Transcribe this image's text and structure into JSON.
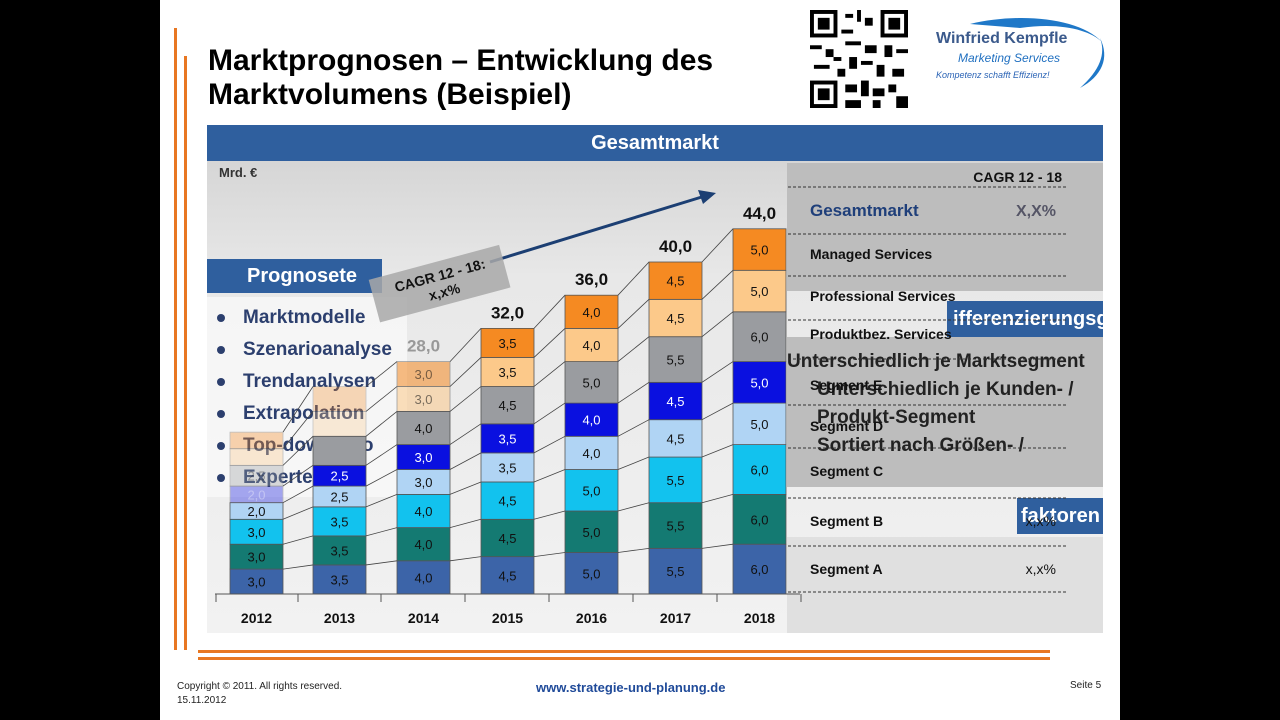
{
  "slide": {
    "title_line1": "Marktprognosen – Entwicklung des",
    "title_line2": "Marktvolumens (Beispiel)",
    "logo_name": "Winfried Kempfle",
    "logo_sub": "Marketing Services",
    "logo_tagline": "Kompetenz schafft Effizienz!",
    "gesamtmarkt_header": "Gesamtmarkt",
    "unit": "Mrd. €",
    "prognose_header": "Prognosete",
    "bullets": [
      "Marktmodelle",
      "Szenarioanalyse",
      "Trendanalysen",
      "Extrapolation",
      "Top-down / Bo",
      "Experte"
    ],
    "diff_header": "ifferenzierungsgrade",
    "diff_lines": [
      "Unterschiedlich je Marktsegment",
      "Unterschiedlich je Kunden- /",
      "Produkt-Segment",
      "Sortiert nach Größen- /"
    ],
    "fakt_header": "faktoren",
    "copyright": "Copyright © 2011. All rights reserved.",
    "date": "15.11.2012",
    "website": "www.strategie-und-planung.de",
    "page": "Seite 5",
    "accent_color": "#e87722",
    "header_color": "#2f5f9e"
  },
  "chart_data": {
    "type": "bar",
    "stacked": true,
    "categories": [
      "2012",
      "2013",
      "2014",
      "2015",
      "2016",
      "2017",
      "2018"
    ],
    "totals_labels": [
      "",
      "",
      "28,0",
      "32,0",
      "36,0",
      "40,0",
      "44,0"
    ],
    "series": [
      {
        "name": "Segment A",
        "color": "#3c64a8",
        "values": [
          3.0,
          3.5,
          4.0,
          4.5,
          5.0,
          5.5,
          6.0
        ]
      },
      {
        "name": "Segment B",
        "color": "#147a72",
        "values": [
          3.0,
          3.5,
          4.0,
          4.5,
          5.0,
          5.5,
          6.0
        ]
      },
      {
        "name": "Segment C",
        "color": "#12c2ee",
        "values": [
          3.0,
          3.5,
          4.0,
          4.5,
          5.0,
          5.5,
          6.0
        ]
      },
      {
        "name": "Segment D",
        "color": "#b0d4f4",
        "values": [
          2.0,
          2.5,
          3.0,
          3.5,
          4.0,
          4.5,
          5.0
        ]
      },
      {
        "name": "Segment E",
        "color": "#0a10e0",
        "values": [
          2.0,
          2.5,
          3.0,
          3.5,
          4.0,
          4.5,
          5.0
        ]
      },
      {
        "name": "Produktbez. Services",
        "color": "#9a9ca0",
        "values": [
          2.5,
          3.5,
          4.0,
          4.5,
          5.0,
          5.5,
          6.0
        ]
      },
      {
        "name": "Professional Services",
        "color": "#fcc98a",
        "values": [
          2.0,
          3.0,
          3.0,
          3.5,
          4.0,
          4.5,
          5.0
        ]
      },
      {
        "name": "Managed Services",
        "color": "#f58a22",
        "values": [
          2.0,
          3.0,
          3.0,
          3.5,
          4.0,
          4.5,
          5.0
        ]
      }
    ],
    "value_labels": [
      [
        "3,0",
        "3,5",
        "4,0",
        "4,5",
        "5,0",
        "5,5",
        "6,0"
      ],
      [
        "3,0",
        "3,5",
        "4,0",
        "4,5",
        "5,0",
        "5,5",
        "6,0"
      ],
      [
        "3,0",
        "3,5",
        "4,0",
        "4,5",
        "5,0",
        "5,5",
        "6,0"
      ],
      [
        "2,0",
        "2,5",
        "3,0",
        "3,5",
        "4,0",
        "4,5",
        "5,0"
      ],
      [
        "2,0",
        "2,5",
        "3,0",
        "3,5",
        "4,0",
        "4,5",
        "5,0"
      ],
      [
        "2,5",
        "",
        "4,0",
        "4,5",
        "5,0",
        "5,5",
        "6,0"
      ],
      [
        "",
        "",
        "3,0",
        "3,5",
        "4,0",
        "4,5",
        "5,0"
      ],
      [
        "",
        "",
        "3,0",
        "3,5",
        "4,0",
        "4,5",
        "5,0"
      ]
    ],
    "cagr_label": "CAGR 12 - 18:",
    "cagr_value": "x,x%",
    "cagr_col_header": "CAGR 12 - 18",
    "legend_rows": [
      {
        "name": "Gesamtmarkt",
        "cagr": "X,X%"
      },
      {
        "name": "Managed Services",
        "cagr": ""
      },
      {
        "name": "Professional Services",
        "cagr": ""
      },
      {
        "name": "Produktbez. Services",
        "cagr": ""
      },
      {
        "name": "Segment E",
        "cagr": ""
      },
      {
        "name": "Segment D",
        "cagr": ""
      },
      {
        "name": "Segment C",
        "cagr": ""
      },
      {
        "name": "Segment B",
        "cagr": "x,x%"
      },
      {
        "name": "Segment A",
        "cagr": "x,x%"
      }
    ]
  }
}
